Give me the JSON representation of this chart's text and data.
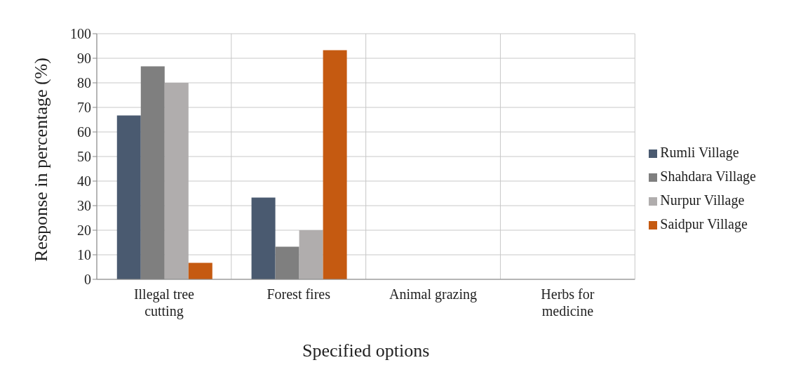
{
  "chart_data": {
    "type": "bar",
    "xlabel": "Specified options",
    "ylabel": "Response in percentage (%)",
    "categories": [
      "Illegal tree cutting",
      "Forest fires",
      "Animal grazing",
      "Herbs for medicine"
    ],
    "series": [
      {
        "name": "Rumli Village",
        "color": "#4a5a70",
        "values": [
          66.7,
          33.3,
          0,
          0
        ]
      },
      {
        "name": "Shahdara Village",
        "color": "#7f7f7f",
        "values": [
          86.7,
          13.3,
          0,
          0
        ]
      },
      {
        "name": "Nurpur Village",
        "color": "#b0adad",
        "values": [
          80,
          20,
          0,
          0
        ]
      },
      {
        "name": "Saidpur Village",
        "color": "#c55a11",
        "values": [
          6.7,
          93.3,
          0,
          0
        ]
      }
    ],
    "ylim": [
      0,
      100
    ],
    "yticks": [
      0,
      10,
      20,
      30,
      40,
      50,
      60,
      70,
      80,
      90,
      100
    ],
    "grid": true,
    "legend": "right"
  }
}
